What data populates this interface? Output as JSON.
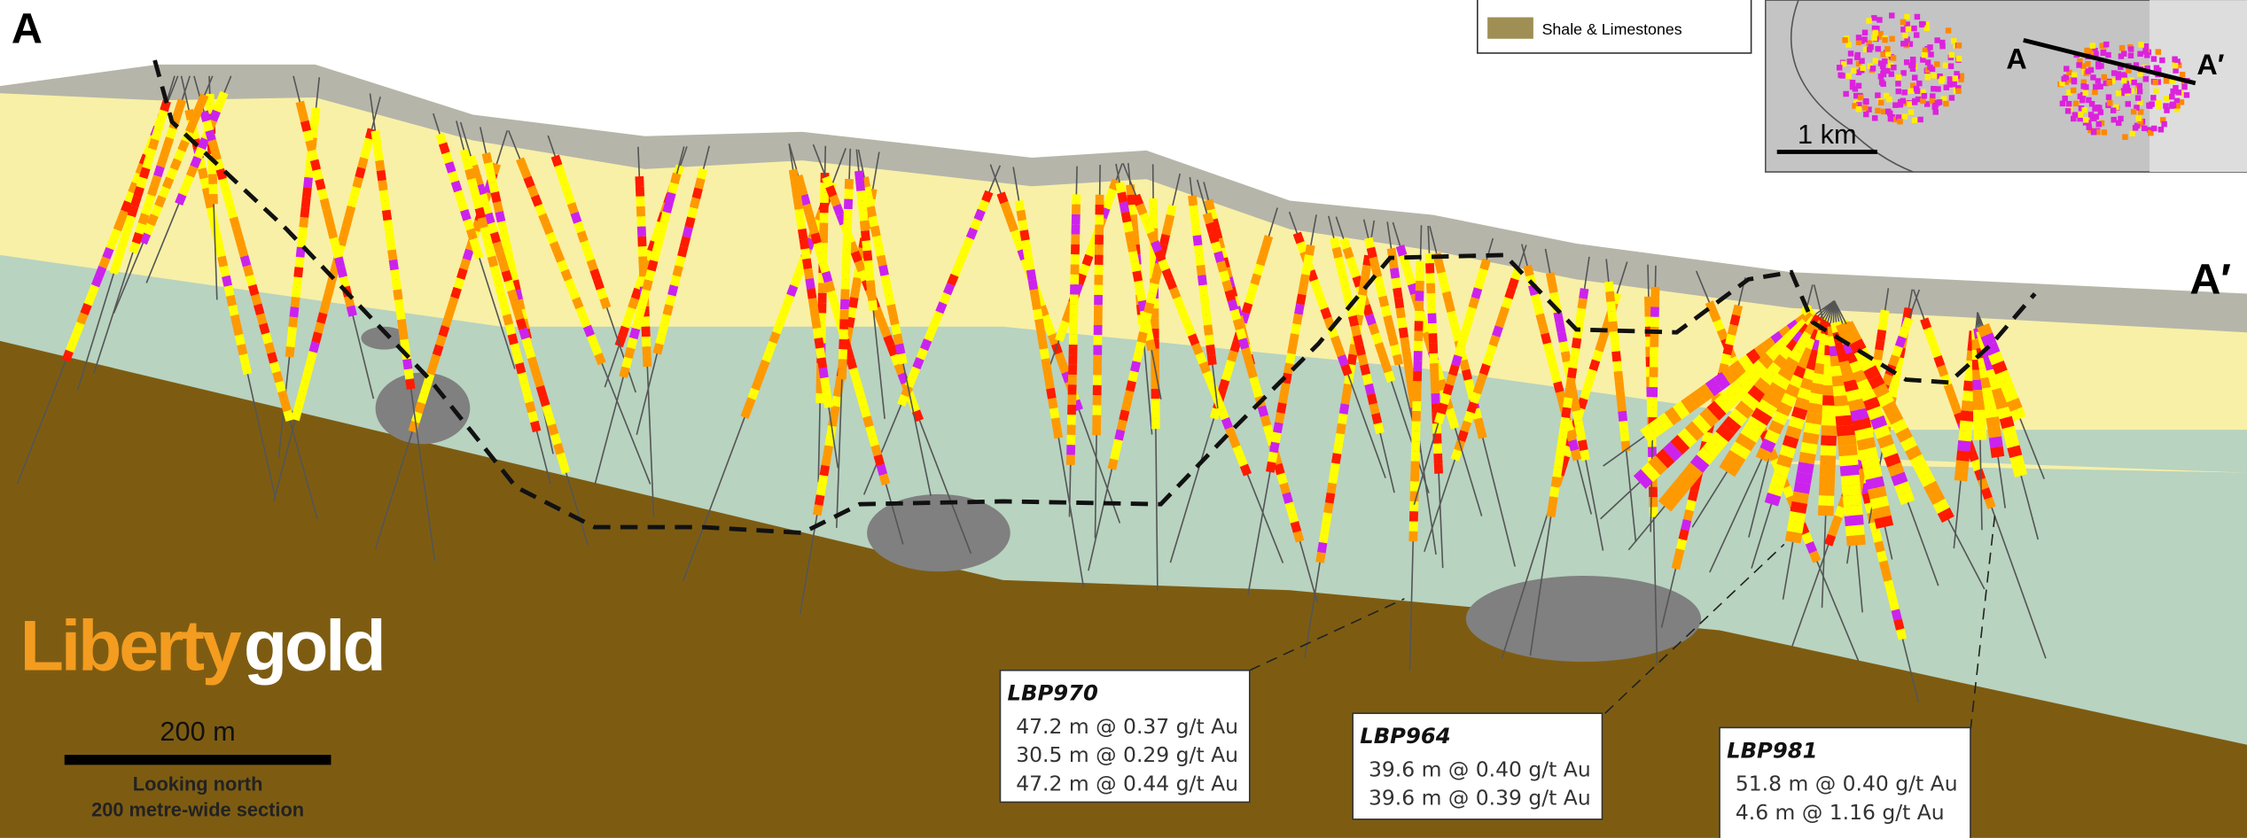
{
  "section_labels": {
    "start": "A",
    "end": "A′"
  },
  "legend": {
    "items": [
      {
        "label": "Shale & Limestones"
      }
    ]
  },
  "inset_map": {
    "start_label": "A",
    "end_label": "A′",
    "scale_label": "1 km"
  },
  "logo": {
    "part1": "Liberty",
    "part2": "gold"
  },
  "scale_bar": {
    "label": "200 m"
  },
  "view_note": {
    "line1": "Looking north",
    "line2": "200 metre-wide section"
  },
  "callouts": [
    {
      "hole": "LBP970",
      "intercepts": [
        "47.2 m @ 0.37 g/t Au",
        "30.5 m @ 0.29 g/t Au",
        "47.2 m @ 0.44 g/t Au"
      ]
    },
    {
      "hole": "LBP964",
      "intercepts": [
        "39.6 m @ 0.40 g/t Au",
        "39.6 m @ 0.39 g/t Au"
      ]
    },
    {
      "hole": "LBP981",
      "intercepts": [
        "51.8 m @ 0.40 g/t Au",
        "4.6 m @ 1.16 g/t Au"
      ]
    }
  ]
}
